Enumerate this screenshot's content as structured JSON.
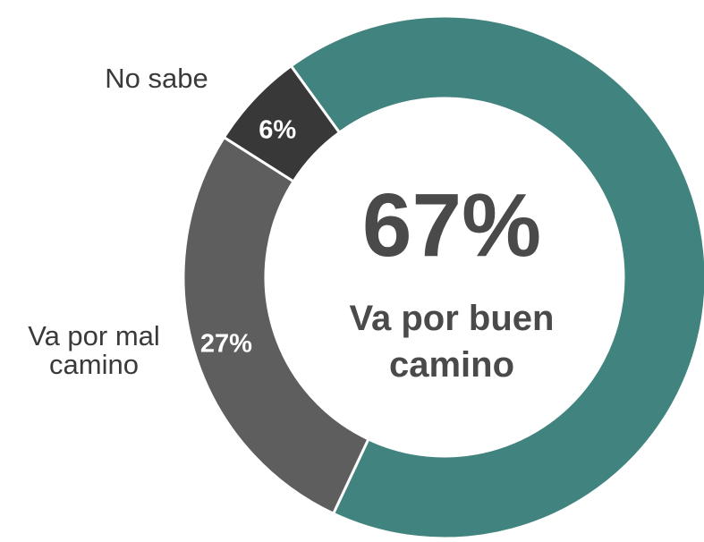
{
  "chart_data": {
    "type": "donut",
    "categories": [
      "Va por buen camino",
      "Va por mal camino",
      "No sabe"
    ],
    "values": [
      67,
      27,
      6
    ],
    "value_labels": [
      "67%",
      "27%",
      "6%"
    ],
    "colors": [
      "#41837e",
      "#5e5e5e",
      "#383838"
    ]
  }
}
